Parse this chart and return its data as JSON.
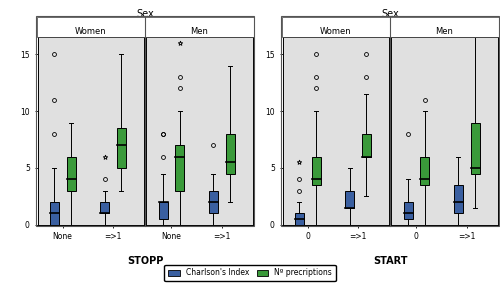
{
  "title_left": "Sex",
  "title_right": "Sex",
  "panel_left_label": "STOPP",
  "panel_right_label": "START",
  "legend_blue": "Charlson's Index",
  "legend_green": "Nº precriptions",
  "ylim": [
    0,
    16.5
  ],
  "yticks": [
    0,
    5,
    10,
    15
  ],
  "blue_color": "#3a5fa0",
  "green_color": "#3a9a3a",
  "bg_color": "#e0e0e0",
  "stopp": {
    "women_none": {
      "blue": {
        "q1": 0.0,
        "q2": 1.0,
        "q3": 2.0,
        "whislo": 0.0,
        "whishi": 5.0,
        "fliers_o": [
          8.0,
          11.0,
          15.0
        ],
        "fliers_star": []
      },
      "green": {
        "q1": 3.0,
        "q2": 4.0,
        "q3": 6.0,
        "whislo": 0.0,
        "whishi": 9.0,
        "fliers_o": [],
        "fliers_star": []
      }
    },
    "women_ge1": {
      "blue": {
        "q1": 1.0,
        "q2": 1.0,
        "q3": 2.0,
        "whislo": 0.0,
        "whishi": 3.0,
        "fliers_o": [
          4.0
        ],
        "fliers_star": [
          6.0
        ]
      },
      "green": {
        "q1": 5.0,
        "q2": 7.0,
        "q3": 8.5,
        "whislo": 3.0,
        "whishi": 15.0,
        "fliers_o": [],
        "fliers_star": []
      }
    },
    "men_none": {
      "blue": {
        "q1": 0.5,
        "q2": 2.0,
        "q3": 2.0,
        "whislo": 0.0,
        "whishi": 4.5,
        "fliers_o": [
          6.0,
          8.0,
          8.0
        ],
        "fliers_star": []
      },
      "green": {
        "q1": 3.0,
        "q2": 6.0,
        "q3": 7.0,
        "whislo": 0.0,
        "whishi": 10.0,
        "fliers_o": [
          12.0,
          13.0
        ],
        "fliers_star": [
          16.0
        ]
      }
    },
    "men_ge1": {
      "blue": {
        "q1": 1.0,
        "q2": 2.0,
        "q3": 3.0,
        "whislo": 0.0,
        "whishi": 4.5,
        "fliers_o": [
          7.0
        ],
        "fliers_star": []
      },
      "green": {
        "q1": 4.5,
        "q2": 5.5,
        "q3": 8.0,
        "whislo": 2.0,
        "whishi": 14.0,
        "fliers_o": [],
        "fliers_star": []
      }
    }
  },
  "start": {
    "women_none": {
      "blue": {
        "q1": 0.0,
        "q2": 0.5,
        "q3": 1.0,
        "whislo": 0.0,
        "whishi": 2.0,
        "fliers_o": [
          3.0,
          4.0
        ],
        "fliers_star": [
          5.5
        ]
      },
      "green": {
        "q1": 3.5,
        "q2": 4.0,
        "q3": 6.0,
        "whislo": 0.0,
        "whishi": 10.0,
        "fliers_o": [
          12.0,
          13.0,
          15.0
        ],
        "fliers_star": []
      }
    },
    "women_ge1": {
      "blue": {
        "q1": 1.5,
        "q2": 1.5,
        "q3": 3.0,
        "whislo": 0.0,
        "whishi": 5.0,
        "fliers_o": [],
        "fliers_star": []
      },
      "green": {
        "q1": 6.0,
        "q2": 6.0,
        "q3": 8.0,
        "whislo": 2.5,
        "whishi": 11.5,
        "fliers_o": [
          13.0,
          15.0
        ],
        "fliers_star": []
      }
    },
    "men_none": {
      "blue": {
        "q1": 0.5,
        "q2": 1.0,
        "q3": 2.0,
        "whislo": 0.0,
        "whishi": 4.0,
        "fliers_o": [
          8.0
        ],
        "fliers_star": []
      },
      "green": {
        "q1": 3.5,
        "q2": 4.0,
        "q3": 6.0,
        "whislo": 0.0,
        "whishi": 10.0,
        "fliers_o": [
          11.0
        ],
        "fliers_star": []
      }
    },
    "men_ge1": {
      "blue": {
        "q1": 1.0,
        "q2": 2.0,
        "q3": 3.5,
        "whislo": 0.0,
        "whishi": 6.0,
        "fliers_o": [],
        "fliers_star": []
      },
      "green": {
        "q1": 4.5,
        "q2": 5.0,
        "q3": 9.0,
        "whislo": 1.5,
        "whishi": 16.5,
        "fliers_o": [],
        "fliers_star": []
      }
    }
  },
  "xtick_stopp": [
    "None",
    "=>1"
  ],
  "xtick_start": [
    "0",
    "=>1"
  ]
}
